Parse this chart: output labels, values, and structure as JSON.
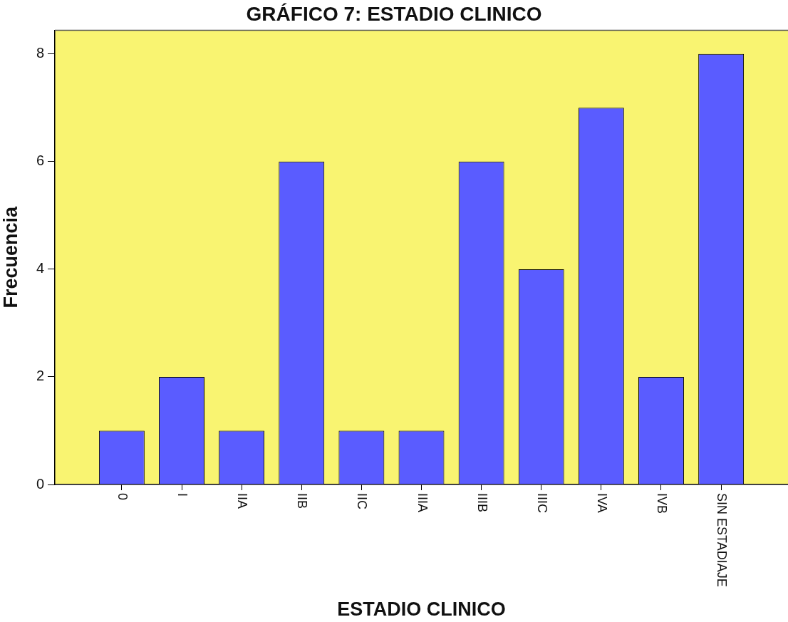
{
  "chart_data": {
    "type": "bar",
    "title": "GRÁFICO 7: ESTADIO CLINICO",
    "xlabel": "ESTADIO CLINICO",
    "ylabel": "Frecuencia",
    "categories": [
      "0",
      "I",
      "IIA",
      "IIB",
      "IIC",
      "IIIA",
      "IIIB",
      "IIIC",
      "IVA",
      "IVB",
      "SIN ESTADIAJE"
    ],
    "values": [
      1,
      2,
      1,
      6,
      1,
      1,
      6,
      4,
      7,
      2,
      8
    ],
    "color": "#5a5cff",
    "ylim": [
      0,
      8.44
    ],
    "yticks": [
      0,
      2,
      4,
      6,
      8
    ]
  }
}
